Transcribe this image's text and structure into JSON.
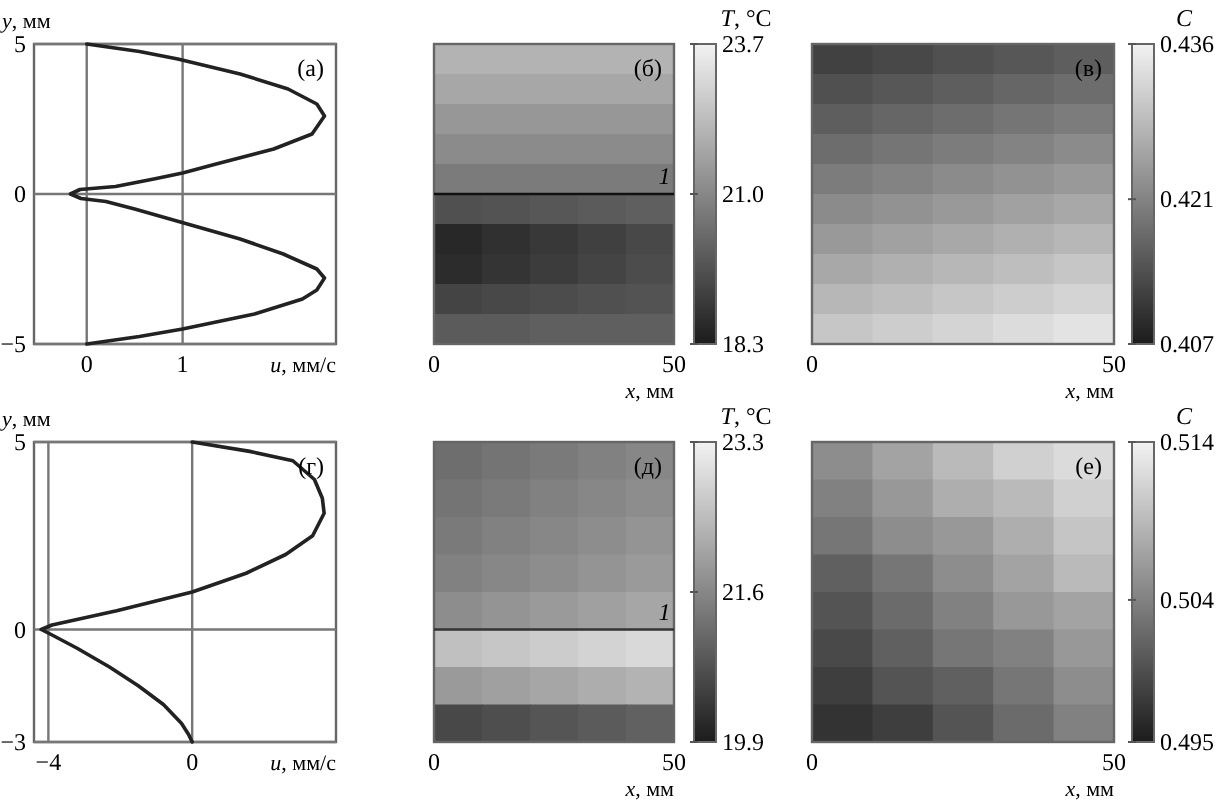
{
  "chart_data": [
    {
      "type": "line",
      "xlabel": "u, мм/с",
      "ylabel": "y, мм",
      "xlim": [
        -0.55,
        2.6
      ],
      "xticks": [
        0,
        1
      ],
      "ylim": [
        -5,
        5
      ],
      "yticks": [
        -5,
        0,
        5
      ],
      "grid": true,
      "annotations": [
        "(а)"
      ],
      "series": [
        {
          "color": "#222222",
          "x": [
            0,
            0.55,
            0.95,
            1.6,
            2.1,
            2.4,
            2.48,
            2.35,
            1.95,
            1.35,
            1.0,
            0.7,
            0.3,
            -0.07,
            -0.17,
            -0.06,
            0.2,
            0.5,
            1.05,
            1.6,
            2.05,
            2.4,
            2.48,
            2.4,
            2.25,
            1.75,
            1.0,
            0.55,
            0
          ],
          "values": [
            5,
            4.75,
            4.5,
            4,
            3.5,
            3,
            2.6,
            2,
            1.5,
            1,
            0.7,
            0.5,
            0.25,
            0.15,
            0,
            -0.15,
            -0.25,
            -0.5,
            -1,
            -1.5,
            -2,
            -2.5,
            -2.8,
            -3.2,
            -3.5,
            -4,
            -4.5,
            -4.75,
            -5
          ]
        }
      ]
    },
    {
      "type": "heatmap",
      "xlabel": "x, мм",
      "clabel": "T, °C",
      "xlim": [
        0,
        50
      ],
      "xticks": [
        0,
        50
      ],
      "ylim": [
        -5,
        5
      ],
      "tick_labels": "x",
      "clim": [
        18.3,
        23.7
      ],
      "cticks": [
        18.3,
        {
          "value": 21.0,
          "label": "21.0"
        },
        23.7
      ],
      "annotations": [
        "(б)",
        {
          "text": "1",
          "x": 48,
          "y": 0
        }
      ],
      "ref_lines": [
        {
          "axis": "y",
          "value": 0,
          "color": "#111111"
        }
      ],
      "cells": [
        [
          22.1,
          22.1,
          22.1,
          22.1,
          22.1
        ],
        [
          21.8,
          21.8,
          21.8,
          21.8,
          21.8
        ],
        [
          21.4,
          21.4,
          21.4,
          21.4,
          21.4
        ],
        [
          21.1,
          21.1,
          21.1,
          21.1,
          21.1
        ],
        [
          20.7,
          20.7,
          20.7,
          20.7,
          20.7
        ],
        [
          19.6,
          19.7,
          19.8,
          19.9,
          20.0
        ],
        [
          18.6,
          18.8,
          19.0,
          19.2,
          19.4
        ],
        [
          18.7,
          18.9,
          19.1,
          19.3,
          19.5
        ],
        [
          19.3,
          19.4,
          19.5,
          19.6,
          19.7
        ],
        [
          19.9,
          19.9,
          20.0,
          20.0,
          20.0
        ]
      ]
    },
    {
      "type": "heatmap",
      "xlabel": "x, мм",
      "clabel": "C",
      "xlim": [
        0,
        50
      ],
      "xticks": [
        0,
        50
      ],
      "ylim": [
        -5,
        5
      ],
      "tick_labels": "x",
      "clim": [
        0.407,
        0.436
      ],
      "cticks": [
        0.407,
        0.421,
        0.436
      ],
      "annotations": [
        "(в)"
      ],
      "cells": [
        [
          0.412,
          0.413,
          0.414,
          0.415,
          0.416
        ],
        [
          0.414,
          0.415,
          0.416,
          0.417,
          0.418
        ],
        [
          0.416,
          0.417,
          0.418,
          0.419,
          0.42
        ],
        [
          0.418,
          0.419,
          0.42,
          0.421,
          0.422
        ],
        [
          0.42,
          0.421,
          0.422,
          0.423,
          0.424
        ],
        [
          0.422,
          0.423,
          0.424,
          0.425,
          0.426
        ],
        [
          0.424,
          0.425,
          0.426,
          0.427,
          0.428
        ],
        [
          0.426,
          0.427,
          0.428,
          0.429,
          0.43
        ],
        [
          0.428,
          0.429,
          0.43,
          0.431,
          0.432
        ],
        [
          0.43,
          0.431,
          0.432,
          0.433,
          0.434
        ]
      ]
    },
    {
      "type": "line",
      "xlabel": "u, мм/с",
      "ylabel": "y, мм",
      "xlim": [
        -4.4,
        4
      ],
      "xticks": [
        -4,
        0
      ],
      "ylim": [
        -3,
        5
      ],
      "yticks": [
        -3,
        0,
        5
      ],
      "grid": true,
      "annotations": [
        "(г)"
      ],
      "series": [
        {
          "color": "#222222",
          "x": [
            0,
            1.6,
            2.8,
            3.4,
            3.62,
            3.67,
            3.35,
            2.6,
            1.5,
            0,
            -2.1,
            -3.9,
            -4.2,
            -3.95,
            -3.2,
            -2.3,
            -1.5,
            -0.8,
            -0.3,
            -0.1,
            0
          ],
          "values": [
            5,
            4.75,
            4.5,
            4,
            3.5,
            3.1,
            2.5,
            2,
            1.5,
            1,
            0.5,
            0.12,
            0,
            -0.12,
            -0.5,
            -1,
            -1.5,
            -2,
            -2.5,
            -2.8,
            -3
          ]
        }
      ]
    },
    {
      "type": "heatmap",
      "xlabel": "x, мм",
      "clabel": "T, °C",
      "xlim": [
        0,
        50
      ],
      "xticks": [
        0,
        50
      ],
      "ylim": [
        -3,
        5
      ],
      "tick_labels": "x",
      "clim": [
        19.9,
        23.3
      ],
      "cticks": [
        19.9,
        21.6,
        23.3
      ],
      "annotations": [
        "(д)",
        {
          "text": "1",
          "x": 48,
          "y": 0
        }
      ],
      "ref_lines": [
        {
          "axis": "y",
          "value": 0,
          "color": "#333333"
        }
      ],
      "cells": [
        [
          21.2,
          21.3,
          21.4,
          21.5,
          21.6
        ],
        [
          21.3,
          21.4,
          21.5,
          21.6,
          21.7
        ],
        [
          21.4,
          21.5,
          21.6,
          21.7,
          21.8
        ],
        [
          21.5,
          21.6,
          21.7,
          21.8,
          21.9
        ],
        [
          21.7,
          21.8,
          21.9,
          22.0,
          22.1
        ],
        [
          22.5,
          22.6,
          22.7,
          22.8,
          22.9
        ],
        [
          21.9,
          22.0,
          22.1,
          22.2,
          22.3
        ],
        [
          20.6,
          20.7,
          20.8,
          20.9,
          21.0
        ]
      ]
    },
    {
      "type": "heatmap",
      "xlabel": "x, мм",
      "clabel": "C",
      "xlim": [
        0,
        50
      ],
      "xticks": [
        0,
        50
      ],
      "ylim": [
        -3,
        5
      ],
      "tick_labels": "x",
      "clim": [
        0.495,
        0.514
      ],
      "cticks": [
        0.495,
        0.504,
        0.514
      ],
      "annotations": [
        "(е)"
      ],
      "cells": [
        [
          0.505,
          0.507,
          0.509,
          0.511,
          0.512
        ],
        [
          0.504,
          0.506,
          0.508,
          0.509,
          0.511
        ],
        [
          0.503,
          0.505,
          0.506,
          0.508,
          0.51
        ],
        [
          0.501,
          0.503,
          0.505,
          0.507,
          0.509
        ],
        [
          0.5,
          0.502,
          0.504,
          0.506,
          0.507
        ],
        [
          0.499,
          0.501,
          0.503,
          0.504,
          0.506
        ],
        [
          0.498,
          0.5,
          0.501,
          0.503,
          0.505
        ],
        [
          0.497,
          0.498,
          0.5,
          0.502,
          0.504
        ]
      ]
    }
  ]
}
